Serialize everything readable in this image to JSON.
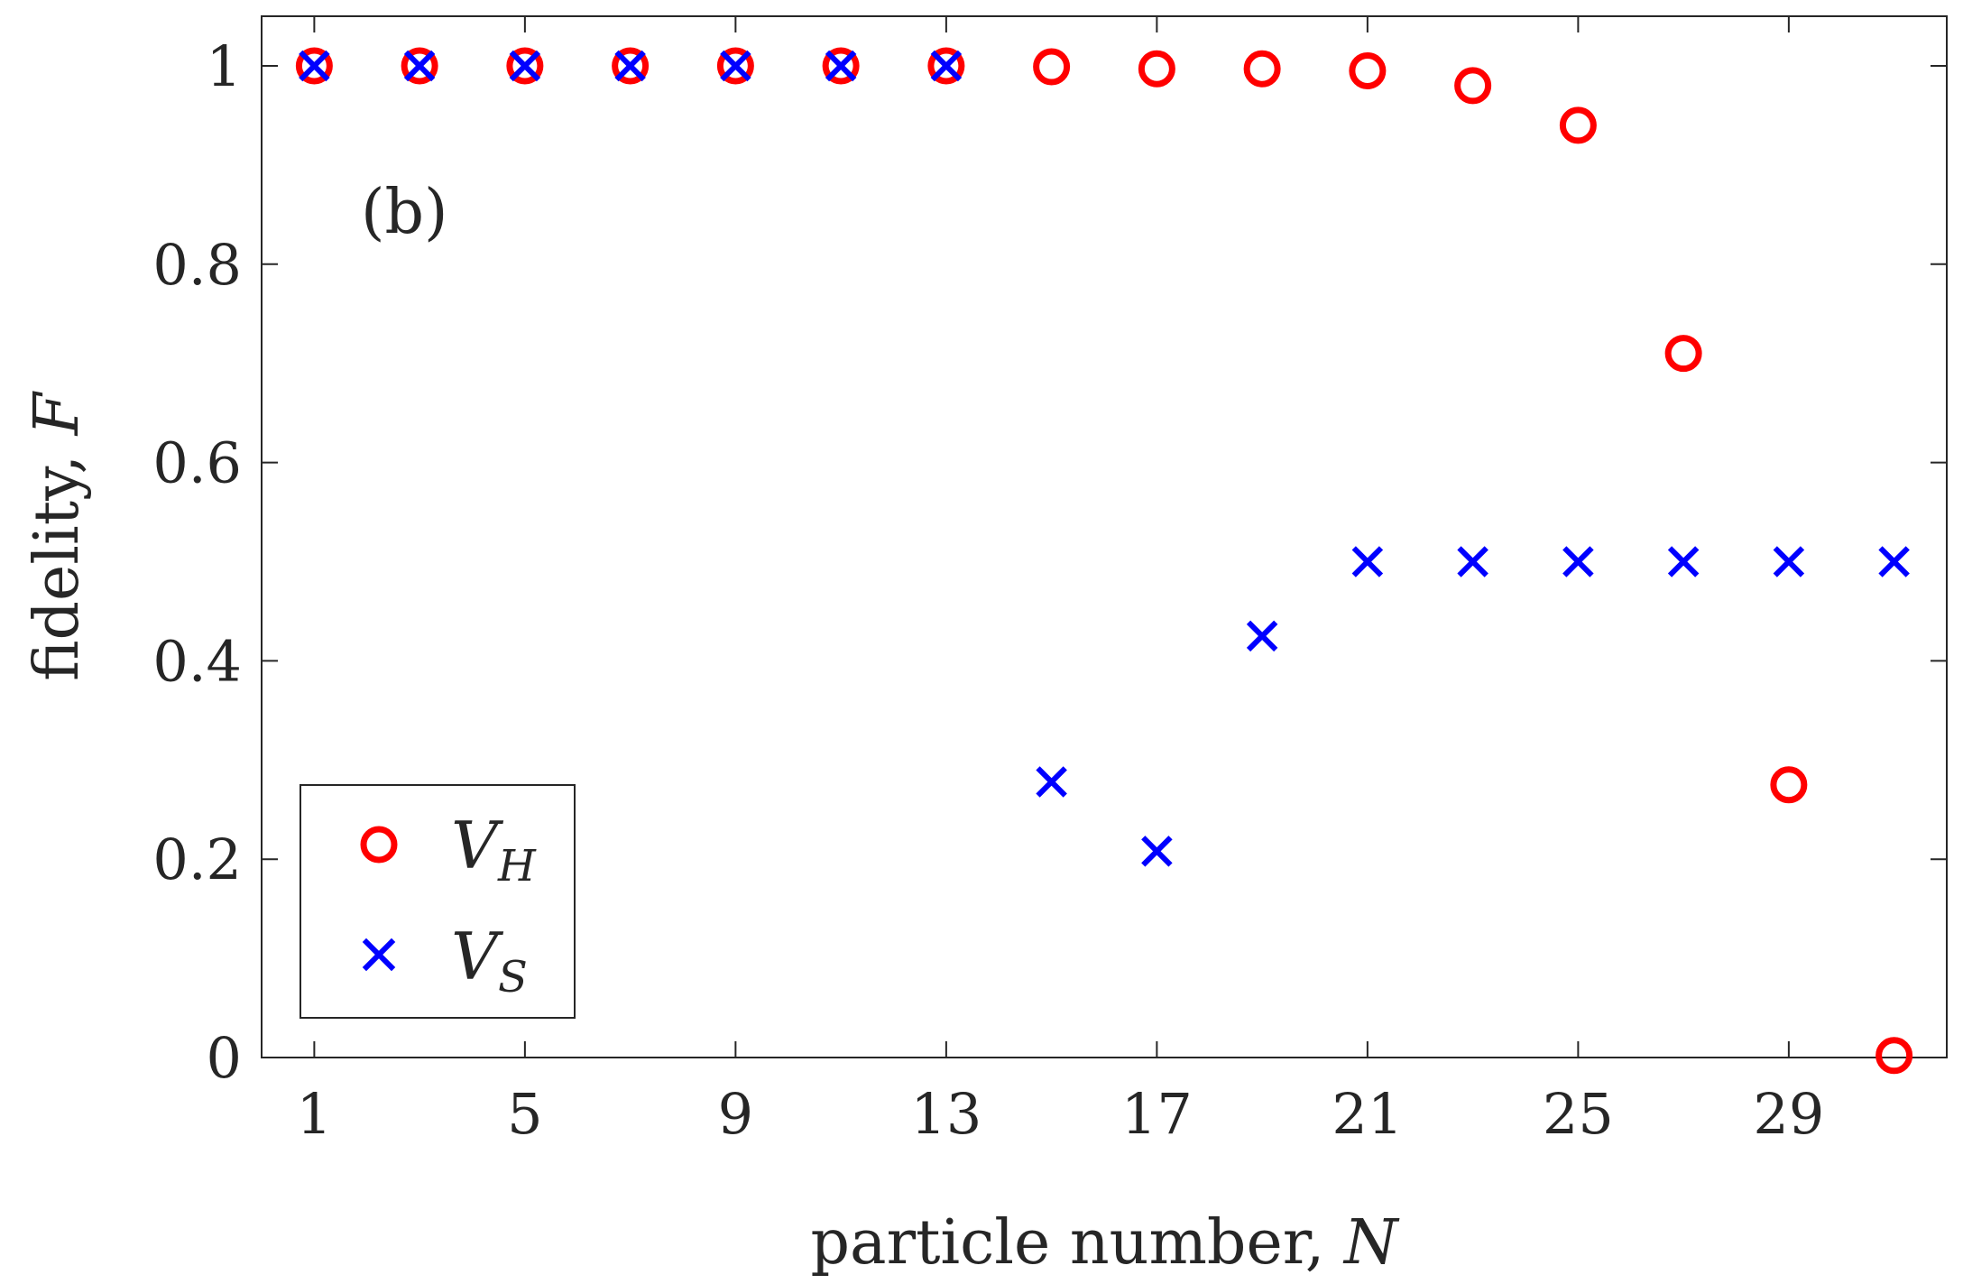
{
  "chart_data": {
    "type": "scatter",
    "panel_label": "(b)",
    "xlabel": "particle number, N",
    "xlabel_text": "particle number, ",
    "xlabel_var": "N",
    "ylabel": "fidelity, F",
    "ylabel_text": "fidelity, ",
    "ylabel_var": "F",
    "xlim": [
      0,
      32
    ],
    "ylim": [
      0,
      1.05
    ],
    "xticks": [
      1,
      5,
      9,
      13,
      17,
      21,
      25,
      29
    ],
    "yticks": [
      0,
      0.2,
      0.4,
      0.6,
      0.8,
      1
    ],
    "ytick_labels": [
      "0",
      "0.2",
      "0.4",
      "0.6",
      "0.8",
      "1"
    ],
    "grid": false,
    "legend_position": "bottom-left",
    "colors": {
      "V_H": "#ff0000",
      "V_S": "#0000ff",
      "axis": "#262626"
    },
    "series": [
      {
        "name": "V_H",
        "legend_main": "V",
        "legend_sub": "H",
        "marker": "circle",
        "x": [
          1,
          3,
          5,
          7,
          9,
          11,
          13,
          15,
          17,
          19,
          21,
          23,
          25,
          27,
          29,
          31
        ],
        "y": [
          1.0,
          1.0,
          1.0,
          1.0,
          1.0,
          1.0,
          1.0,
          0.999,
          0.997,
          0.997,
          0.995,
          0.98,
          0.94,
          0.71,
          0.275,
          0.002
        ]
      },
      {
        "name": "V_S",
        "legend_main": "V",
        "legend_sub": "S",
        "marker": "x",
        "x": [
          1,
          3,
          5,
          7,
          9,
          11,
          13,
          15,
          17,
          19,
          21,
          23,
          25,
          27,
          29,
          31
        ],
        "y": [
          1.0,
          1.0,
          1.0,
          1.0,
          1.0,
          1.0,
          1.0,
          0.278,
          0.208,
          0.425,
          0.5,
          0.5,
          0.5,
          0.5,
          0.5,
          0.5
        ]
      }
    ]
  }
}
